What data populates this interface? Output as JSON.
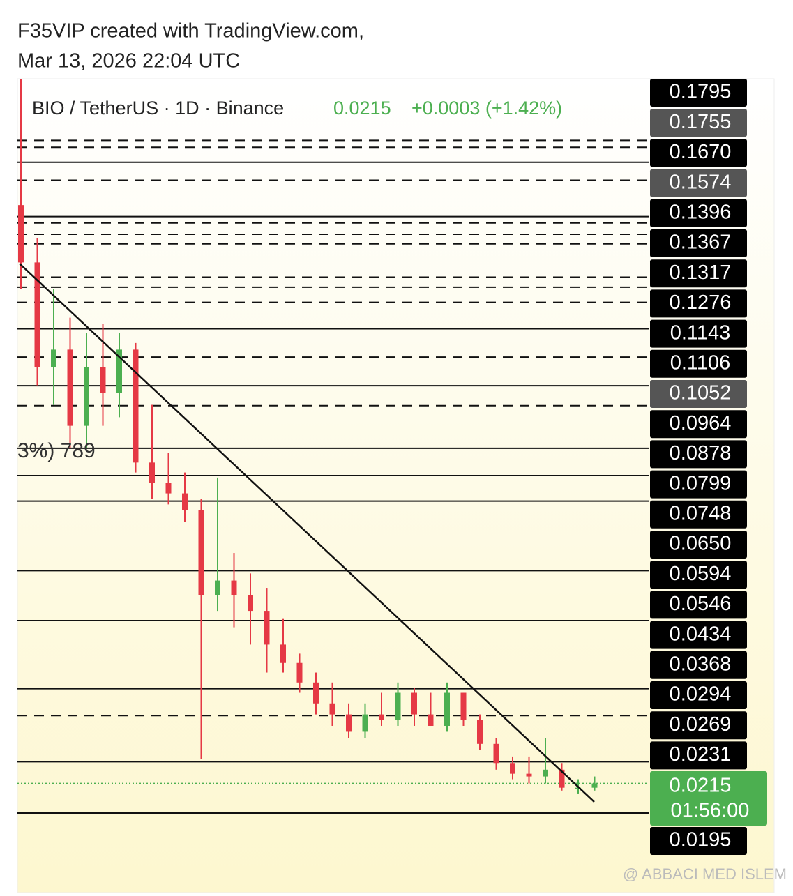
{
  "header": {
    "line1": "F35VIP created with TradingView.com,",
    "line2": "Mar 13, 2026 22:04 UTC"
  },
  "chart_data": {
    "type": "candlestick",
    "title": "BIO / TetherUS · 1D · Binance",
    "last_price": {
      "value": 0.0215,
      "label": "0.0215"
    },
    "change_label": "+0.0003 (+1.42%)",
    "countdown": "01:56:00",
    "overlay_fragment": "3%) 789",
    "watermark": "@ ABBACI MED ISLEM",
    "log_scale": true,
    "ylim": [
      0.015,
      0.22
    ],
    "yticks": [
      0.1795,
      0.1755,
      {
        "value": 0.167,
        "label": "0.1670"
      },
      0.1574,
      0.1396,
      0.1367,
      0.1317,
      0.1276,
      0.1143,
      0.1106,
      0.1052,
      0.0964,
      0.0878,
      0.0799,
      0.0748,
      {
        "value": 0.065,
        "label": "0.0650"
      },
      0.0594,
      0.0546,
      0.0434,
      0.0368,
      0.0294,
      0.0269,
      0.0231,
      0.0215,
      0.0195
    ],
    "ytick_styles": [
      "dashed",
      "dashed",
      "solid",
      "dashed",
      "solid",
      "dashed",
      "dashed",
      "dashed",
      "dashed",
      "dashed",
      "dashed",
      "solid",
      "dashed",
      "solid",
      "dashed",
      "solid",
      "solid",
      "solid",
      "solid",
      "solid",
      "solid",
      "dashed",
      "solid",
      "dotted",
      "solid"
    ],
    "ytick_backgrounds": [
      "#000000",
      "#555555",
      "#000000",
      "#555555",
      "#000000",
      "#000000",
      "#000000",
      "#000000",
      "#000000",
      "#000000",
      "#555555",
      "#000000",
      "#000000",
      "#000000",
      "#000000",
      "#000000",
      "#000000",
      "#000000",
      "#000000",
      "#000000",
      "#000000",
      "#000000",
      "#000000",
      "#4caf50",
      "#000000"
    ],
    "up_color": "#4caf50",
    "down_color": "#e53945",
    "open": [
      0.145,
      0.12,
      0.085,
      0.09,
      0.07,
      0.085,
      0.078,
      0.09,
      0.062,
      0.058,
      0.056,
      0.053,
      0.04,
      0.042,
      0.04,
      0.038,
      0.034,
      0.032,
      0.03,
      0.028,
      0.027,
      0.0255,
      0.027,
      0.0265,
      0.029,
      0.027,
      0.026,
      0.029,
      0.0265,
      0.0245,
      0.023,
      0.0222,
      0.022,
      0.0225,
      0.0212,
      0.0212
    ],
    "high": [
      0.22,
      0.13,
      0.11,
      0.1,
      0.095,
      0.098,
      0.095,
      0.092,
      0.075,
      0.064,
      0.06,
      0.055,
      0.059,
      0.046,
      0.043,
      0.041,
      0.037,
      0.033,
      0.031,
      0.03,
      0.028,
      0.028,
      0.029,
      0.03,
      0.0295,
      0.029,
      0.03,
      0.029,
      0.027,
      0.025,
      0.0235,
      0.0235,
      0.025,
      0.023,
      0.0218,
      0.022
    ],
    "low": [
      0.11,
      0.08,
      0.075,
      0.065,
      0.065,
      0.07,
      0.072,
      0.06,
      0.055,
      0.054,
      0.051,
      0.0233,
      0.038,
      0.036,
      0.034,
      0.031,
      0.031,
      0.029,
      0.027,
      0.026,
      0.025,
      0.025,
      0.026,
      0.026,
      0.026,
      0.026,
      0.0255,
      0.026,
      0.024,
      0.0225,
      0.0218,
      0.0215,
      0.0215,
      0.021,
      0.0208,
      0.021
    ],
    "close": [
      0.12,
      0.085,
      0.09,
      0.07,
      0.085,
      0.078,
      0.09,
      0.062,
      0.058,
      0.056,
      0.053,
      0.04,
      0.042,
      0.04,
      0.038,
      0.034,
      0.032,
      0.03,
      0.028,
      0.027,
      0.0255,
      0.027,
      0.0265,
      0.029,
      0.027,
      0.026,
      0.029,
      0.0265,
      0.0245,
      0.023,
      0.0222,
      0.022,
      0.0225,
      0.0212,
      0.0212,
      0.0215
    ]
  }
}
